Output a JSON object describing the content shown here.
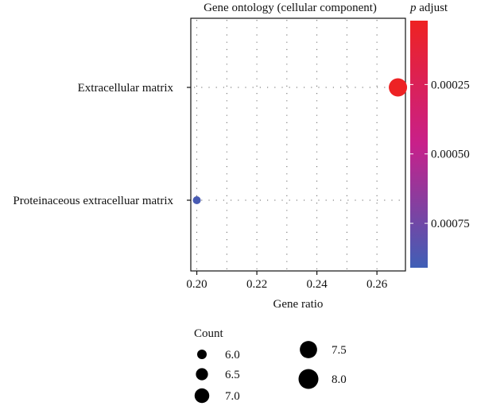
{
  "chart_data": {
    "type": "scatter",
    "title": "Gene ontology (cellular component)",
    "xlabel": "Gene ratio",
    "ylabel": "",
    "xlim": [
      0.198,
      0.2695
    ],
    "x_ticks": [
      0.2,
      0.22,
      0.24,
      0.26
    ],
    "x_tick_labels": [
      "0.20",
      "0.22",
      "0.24",
      "0.26"
    ],
    "categories": [
      "Extracellular matrix",
      "Proteinaceous extracelluar matrix"
    ],
    "points": [
      {
        "term": "Extracellular matrix",
        "gene_ratio": 0.267,
        "count": 8,
        "p_adjust": 3e-05
      },
      {
        "term": "Proteinaceous extracelluar matrix",
        "gene_ratio": 0.2,
        "count": 6,
        "p_adjust": 0.00088
      }
    ],
    "grid": "dotted",
    "colorbar": {
      "title_italic": "p",
      "title_rest": " adjust",
      "range": [
        2e-05,
        0.00091
      ],
      "ticks": [
        0.00025,
        0.0005,
        0.00075
      ],
      "tick_labels": [
        "0.00025",
        "0.00050",
        "0.00075"
      ],
      "color_low_p": "#ee2222",
      "color_mid": "#c8208a",
      "color_high_p": "#3f5fb6"
    },
    "size_legend": {
      "title": "Count",
      "entries": [
        {
          "value": 6.0,
          "label": "6.0"
        },
        {
          "value": 6.5,
          "label": "6.5"
        },
        {
          "value": 7.0,
          "label": "7.0"
        },
        {
          "value": 7.5,
          "label": "7.5"
        },
        {
          "value": 8.0,
          "label": "8.0"
        }
      ]
    },
    "legend_position": "right"
  }
}
